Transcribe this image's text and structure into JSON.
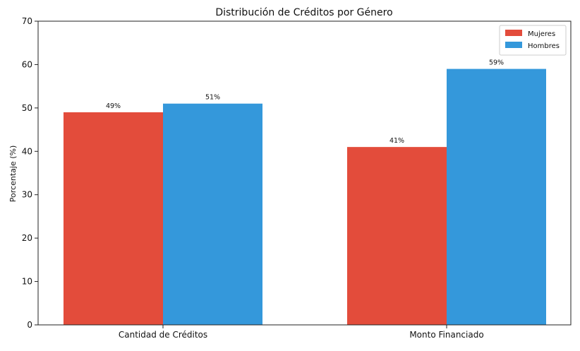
{
  "chart_data": {
    "type": "bar",
    "title": "Distribución de Créditos por Género",
    "xlabel": "",
    "ylabel": "Porcentaje (%)",
    "categories": [
      "Cantidad de Créditos",
      "Monto Financiado"
    ],
    "series": [
      {
        "name": "Mujeres",
        "values": [
          49,
          41
        ],
        "labels": [
          "49%",
          "41%"
        ],
        "color": "#e34c3b"
      },
      {
        "name": "Hombres",
        "values": [
          51,
          59
        ],
        "labels": [
          "51%",
          "59%"
        ],
        "color": "#3498db"
      }
    ],
    "ylim": [
      0,
      70
    ],
    "yticks": [
      0,
      10,
      20,
      30,
      40,
      50,
      60,
      70
    ],
    "grid": false,
    "legend_position": "top-right"
  }
}
